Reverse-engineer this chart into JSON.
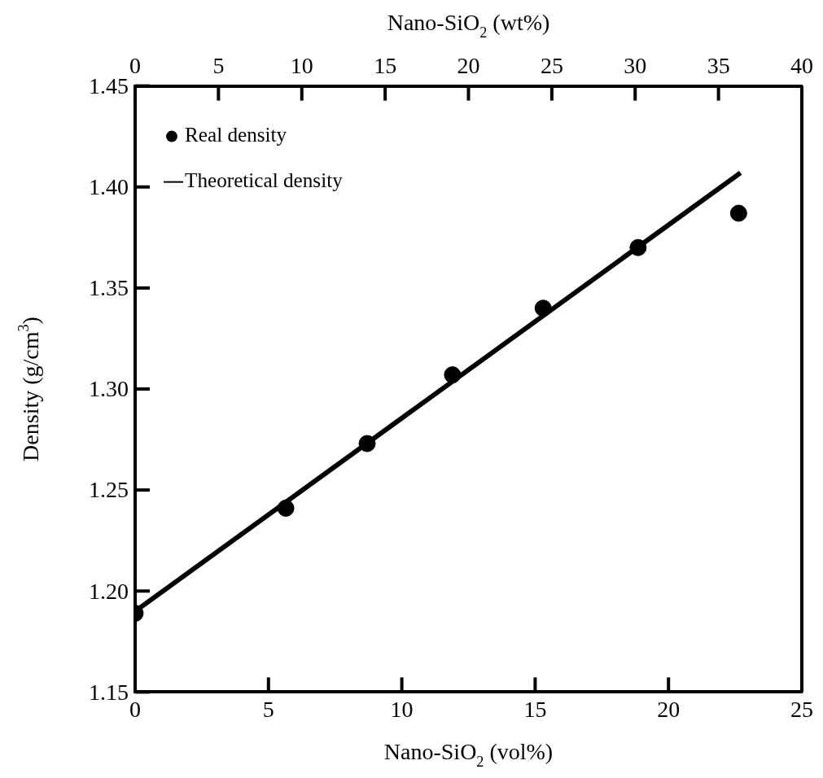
{
  "chart_data": {
    "type": "scatter",
    "xlabel": "Nano-SiO$_{2}$ (vol%)",
    "x2label": "Nano-SiO$_{2}$ (wt%)",
    "ylabel": "Density (g/cm$^{3}$)",
    "xlim": [
      0,
      25
    ],
    "xticks": [
      0,
      5,
      10,
      15,
      20,
      25
    ],
    "x2lim": [
      0,
      40
    ],
    "x2ticks": [
      0,
      5,
      10,
      15,
      20,
      25,
      30,
      35,
      40
    ],
    "ylim": [
      1.15,
      1.45
    ],
    "yticks": [
      1.15,
      {
        "value": 1.2,
        "label": "1.20"
      },
      1.25,
      {
        "value": 1.3,
        "label": "1.30"
      },
      1.35,
      {
        "value": 1.4,
        "label": "1.40"
      },
      1.45
    ],
    "legend": "top left",
    "grid": false,
    "series": [
      {
        "name": "Real density",
        "type": "scatter",
        "marker": "circle",
        "color": "#000000",
        "x": [
          0,
          5.65,
          8.7,
          11.9,
          15.3,
          18.86,
          22.63
        ],
        "values": [
          1.189,
          1.241,
          1.273,
          1.307,
          1.34,
          1.37,
          1.387
        ]
      },
      {
        "name": "Theoretical density",
        "type": "line",
        "marker": "none",
        "color": "#000000",
        "x": [
          0,
          22.7
        ],
        "values": [
          1.19,
          1.407
        ]
      }
    ]
  }
}
